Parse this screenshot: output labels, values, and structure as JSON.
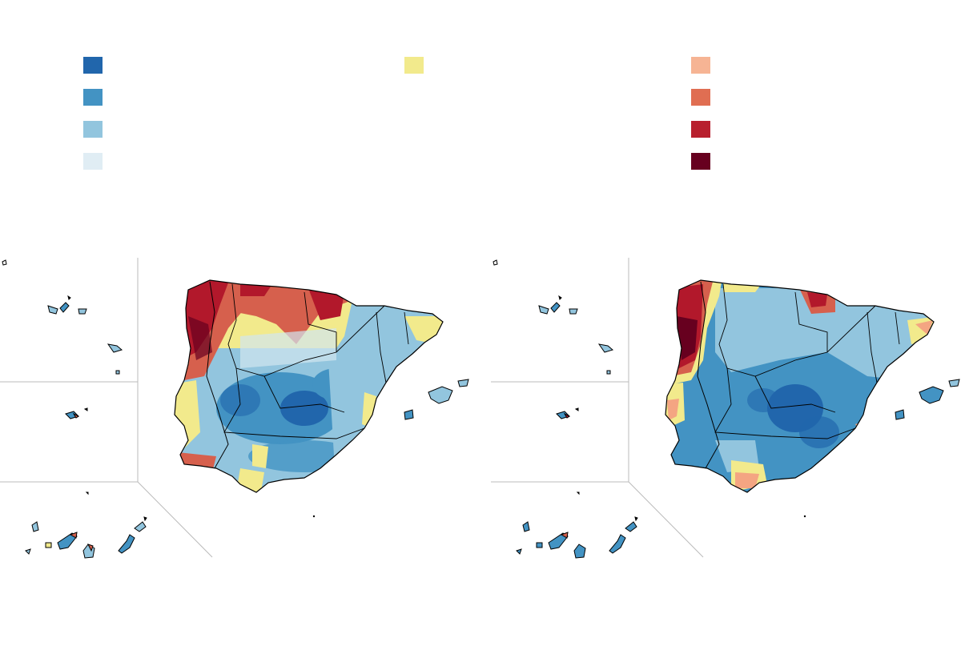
{
  "legend": {
    "items": [
      {
        "color": "#2166ac",
        "label": ""
      },
      {
        "color": "#4393c3",
        "label": ""
      },
      {
        "color": "#92c5de",
        "label": ""
      },
      {
        "color": "#d1e5f0",
        "label": ""
      },
      {
        "color": "#f2ea8c",
        "label": ""
      },
      {
        "color": "#f4a582",
        "label": ""
      },
      {
        "color": "#d6604d",
        "label": ""
      },
      {
        "color": "#b2182b",
        "label": ""
      },
      {
        "color": "#67001f",
        "label": ""
      }
    ]
  },
  "maps": [
    {
      "name": "left-map",
      "dominant": "mixed"
    },
    {
      "name": "right-map",
      "dominant": "blue"
    }
  ],
  "colors": {
    "border": "#000000",
    "inset_line": "#bbbbbb",
    "background": "#ffffff"
  }
}
